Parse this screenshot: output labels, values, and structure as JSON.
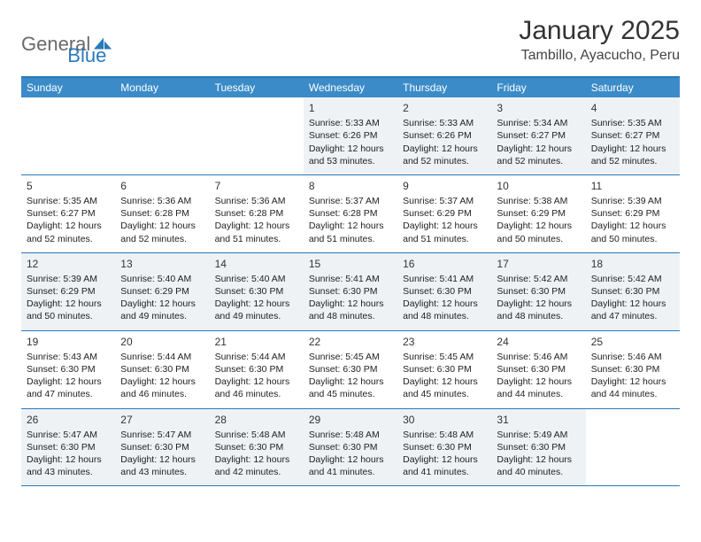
{
  "brand": {
    "text1": "General",
    "text2": "Blue",
    "color_general": "#6a6a6a",
    "color_blue": "#2a7ab9"
  },
  "title": "January 2025",
  "subtitle": "Tambillo, Ayacucho, Peru",
  "colors": {
    "header_bg": "#3b8bc8",
    "row_border": "#2a7ab9",
    "shaded_bg": "#eef2f5",
    "text": "#222222",
    "page_bg": "#ffffff"
  },
  "day_headers": [
    "Sunday",
    "Monday",
    "Tuesday",
    "Wednesday",
    "Thursday",
    "Friday",
    "Saturday"
  ],
  "weeks": [
    [
      {
        "empty": true
      },
      {
        "empty": true
      },
      {
        "empty": true
      },
      {
        "day": "1",
        "sunrise": "5:33 AM",
        "sunset": "6:26 PM",
        "daylight": "12 hours and 53 minutes."
      },
      {
        "day": "2",
        "sunrise": "5:33 AM",
        "sunset": "6:26 PM",
        "daylight": "12 hours and 52 minutes."
      },
      {
        "day": "3",
        "sunrise": "5:34 AM",
        "sunset": "6:27 PM",
        "daylight": "12 hours and 52 minutes."
      },
      {
        "day": "4",
        "sunrise": "5:35 AM",
        "sunset": "6:27 PM",
        "daylight": "12 hours and 52 minutes."
      }
    ],
    [
      {
        "day": "5",
        "sunrise": "5:35 AM",
        "sunset": "6:27 PM",
        "daylight": "12 hours and 52 minutes."
      },
      {
        "day": "6",
        "sunrise": "5:36 AM",
        "sunset": "6:28 PM",
        "daylight": "12 hours and 52 minutes."
      },
      {
        "day": "7",
        "sunrise": "5:36 AM",
        "sunset": "6:28 PM",
        "daylight": "12 hours and 51 minutes."
      },
      {
        "day": "8",
        "sunrise": "5:37 AM",
        "sunset": "6:28 PM",
        "daylight": "12 hours and 51 minutes."
      },
      {
        "day": "9",
        "sunrise": "5:37 AM",
        "sunset": "6:29 PM",
        "daylight": "12 hours and 51 minutes."
      },
      {
        "day": "10",
        "sunrise": "5:38 AM",
        "sunset": "6:29 PM",
        "daylight": "12 hours and 50 minutes."
      },
      {
        "day": "11",
        "sunrise": "5:39 AM",
        "sunset": "6:29 PM",
        "daylight": "12 hours and 50 minutes."
      }
    ],
    [
      {
        "day": "12",
        "sunrise": "5:39 AM",
        "sunset": "6:29 PM",
        "daylight": "12 hours and 50 minutes."
      },
      {
        "day": "13",
        "sunrise": "5:40 AM",
        "sunset": "6:29 PM",
        "daylight": "12 hours and 49 minutes."
      },
      {
        "day": "14",
        "sunrise": "5:40 AM",
        "sunset": "6:30 PM",
        "daylight": "12 hours and 49 minutes."
      },
      {
        "day": "15",
        "sunrise": "5:41 AM",
        "sunset": "6:30 PM",
        "daylight": "12 hours and 48 minutes."
      },
      {
        "day": "16",
        "sunrise": "5:41 AM",
        "sunset": "6:30 PM",
        "daylight": "12 hours and 48 minutes."
      },
      {
        "day": "17",
        "sunrise": "5:42 AM",
        "sunset": "6:30 PM",
        "daylight": "12 hours and 48 minutes."
      },
      {
        "day": "18",
        "sunrise": "5:42 AM",
        "sunset": "6:30 PM",
        "daylight": "12 hours and 47 minutes."
      }
    ],
    [
      {
        "day": "19",
        "sunrise": "5:43 AM",
        "sunset": "6:30 PM",
        "daylight": "12 hours and 47 minutes."
      },
      {
        "day": "20",
        "sunrise": "5:44 AM",
        "sunset": "6:30 PM",
        "daylight": "12 hours and 46 minutes."
      },
      {
        "day": "21",
        "sunrise": "5:44 AM",
        "sunset": "6:30 PM",
        "daylight": "12 hours and 46 minutes."
      },
      {
        "day": "22",
        "sunrise": "5:45 AM",
        "sunset": "6:30 PM",
        "daylight": "12 hours and 45 minutes."
      },
      {
        "day": "23",
        "sunrise": "5:45 AM",
        "sunset": "6:30 PM",
        "daylight": "12 hours and 45 minutes."
      },
      {
        "day": "24",
        "sunrise": "5:46 AM",
        "sunset": "6:30 PM",
        "daylight": "12 hours and 44 minutes."
      },
      {
        "day": "25",
        "sunrise": "5:46 AM",
        "sunset": "6:30 PM",
        "daylight": "12 hours and 44 minutes."
      }
    ],
    [
      {
        "day": "26",
        "sunrise": "5:47 AM",
        "sunset": "6:30 PM",
        "daylight": "12 hours and 43 minutes."
      },
      {
        "day": "27",
        "sunrise": "5:47 AM",
        "sunset": "6:30 PM",
        "daylight": "12 hours and 43 minutes."
      },
      {
        "day": "28",
        "sunrise": "5:48 AM",
        "sunset": "6:30 PM",
        "daylight": "12 hours and 42 minutes."
      },
      {
        "day": "29",
        "sunrise": "5:48 AM",
        "sunset": "6:30 PM",
        "daylight": "12 hours and 41 minutes."
      },
      {
        "day": "30",
        "sunrise": "5:48 AM",
        "sunset": "6:30 PM",
        "daylight": "12 hours and 41 minutes."
      },
      {
        "day": "31",
        "sunrise": "5:49 AM",
        "sunset": "6:30 PM",
        "daylight": "12 hours and 40 minutes."
      },
      {
        "empty": true
      }
    ]
  ],
  "labels": {
    "sunrise": "Sunrise:",
    "sunset": "Sunset:",
    "daylight": "Daylight:"
  }
}
